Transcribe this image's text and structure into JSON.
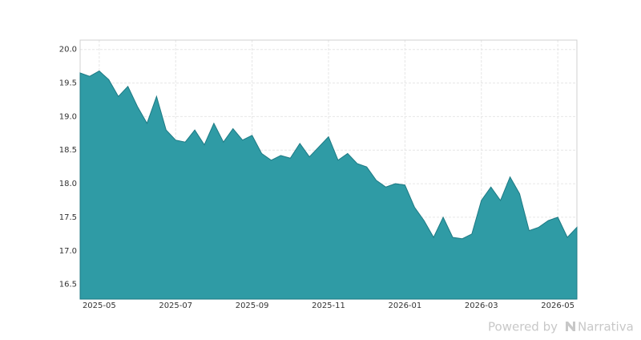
{
  "chart_data": {
    "type": "area",
    "x": [
      "2025-04",
      "2025-04",
      "2025-05",
      "2025-05",
      "2025-05",
      "2025-05",
      "2025-06",
      "2025-06",
      "2025-06",
      "2025-06",
      "2025-07",
      "2025-07",
      "2025-07",
      "2025-07",
      "2025-08",
      "2025-08",
      "2025-08",
      "2025-08",
      "2025-09",
      "2025-09",
      "2025-09",
      "2025-09",
      "2025-10",
      "2025-10",
      "2025-10",
      "2025-10",
      "2025-11",
      "2025-11",
      "2025-11",
      "2025-11",
      "2025-12",
      "2025-12",
      "2025-12",
      "2025-12",
      "2026-01",
      "2026-01",
      "2026-01",
      "2026-01",
      "2026-02",
      "2026-02",
      "2026-02",
      "2026-02",
      "2026-03",
      "2026-03",
      "2026-03",
      "2026-03",
      "2026-04",
      "2026-04",
      "2026-04",
      "2026-04",
      "2026-05",
      "2026-05",
      "2026-05"
    ],
    "values": [
      19.65,
      19.6,
      19.68,
      19.55,
      19.3,
      19.45,
      19.15,
      18.9,
      19.3,
      18.8,
      18.65,
      18.62,
      18.8,
      18.58,
      18.9,
      18.62,
      18.82,
      18.65,
      18.72,
      18.45,
      18.35,
      18.42,
      18.38,
      18.6,
      18.4,
      18.55,
      18.7,
      18.35,
      18.45,
      18.3,
      18.25,
      18.05,
      17.95,
      18.0,
      17.98,
      17.65,
      17.45,
      17.2,
      17.5,
      17.2,
      17.18,
      17.25,
      17.75,
      17.95,
      17.75,
      18.1,
      17.85,
      17.3,
      17.35,
      17.45,
      17.5,
      17.2,
      17.35
    ],
    "color": "#2f9ba5",
    "ylim": [
      16.28,
      20.14
    ],
    "yticks": [
      16.5,
      {
        "value": 17.0,
        "label": "17.0"
      },
      17.5,
      {
        "value": 18.0,
        "label": "18.0"
      },
      18.5,
      {
        "value": 19.0,
        "label": "19.0"
      },
      19.5,
      {
        "value": 20.0,
        "label": "20.0"
      }
    ],
    "xticks": [
      "2025-05",
      "2025-07",
      "2025-09",
      "2025-11",
      "2026-01",
      "2026-03",
      "2026-05"
    ],
    "grid": true
  },
  "watermark": {
    "prefix": "Powered by",
    "brand": "Narrativa"
  }
}
